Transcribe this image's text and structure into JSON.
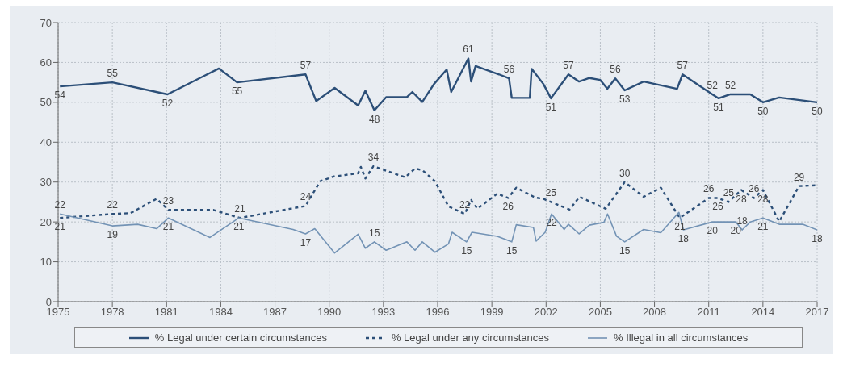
{
  "chart_data": {
    "type": "line",
    "xlim": [
      1975,
      2017
    ],
    "xticks": [
      1975,
      1978,
      1981,
      1984,
      1987,
      1990,
      1993,
      1996,
      1999,
      2002,
      2005,
      2008,
      2011,
      2014,
      2017
    ],
    "ylim": [
      0,
      70
    ],
    "yticks": [
      0,
      10,
      20,
      30,
      40,
      50,
      60,
      70
    ],
    "grid": true,
    "legend": "bottom",
    "marker": "none",
    "series": [
      {
        "name": "% Legal under certain circumstances",
        "color": "#2c4f78",
        "line_style": "solid",
        "x": [
          1975.1,
          1978,
          1981.05,
          1983.9,
          1984.9,
          1988.69,
          1989.28,
          1990.3,
          1991.6,
          1992,
          1992.5,
          1993.15,
          1994.3,
          1994.6,
          1995.15,
          1995.8,
          1996.5,
          1996.75,
          1997.7,
          1997.85,
          1998.1,
          1999.4,
          1999.95,
          2000.1,
          2001.1,
          2001.2,
          2001.85,
          2002.27,
          2003.24,
          2003.83,
          2004.4,
          2005,
          2005.39,
          2005.83,
          2006.35,
          2007.4,
          2009.25,
          2009.55,
          2011.2,
          2011.55,
          2012.2,
          2013.3,
          2014,
          2014.9,
          2017
        ],
        "values": [
          54,
          55,
          52,
          58.5,
          55,
          57,
          50.3,
          53.6,
          49.2,
          52.9,
          48,
          51.3,
          51.3,
          52.6,
          50.1,
          54.6,
          58.2,
          52.6,
          61,
          55.2,
          59.1,
          57,
          56,
          51.1,
          51.1,
          58.4,
          54.6,
          51,
          57,
          55.2,
          56.1,
          55.6,
          53.4,
          56,
          53,
          55.2,
          53.4,
          57,
          52,
          51,
          52,
          52,
          50,
          51.2,
          50
        ],
        "value_labels": [
          "54",
          "55",
          "52",
          null,
          "55",
          "57",
          null,
          null,
          null,
          null,
          "48",
          null,
          null,
          null,
          null,
          null,
          null,
          null,
          "61",
          null,
          null,
          null,
          "56",
          null,
          null,
          null,
          null,
          "51",
          "57",
          null,
          null,
          null,
          null,
          "56",
          "53",
          null,
          null,
          "57",
          "52",
          "51",
          "52",
          null,
          "50",
          null,
          "50"
        ]
      },
      {
        "name": "% Legal under any circumstances",
        "color": "#2c4f78",
        "line_style": "dashed",
        "x": [
          1975.1,
          1978,
          1979,
          1980.45,
          1981.1,
          1983.6,
          1985.05,
          1988.69,
          1989.5,
          1990.25,
          1991.6,
          1991.75,
          1992,
          1992.45,
          1993.05,
          1994.2,
          1994.75,
          1995.15,
          1995.85,
          1996.6,
          1997.5,
          1997.85,
          1998.2,
          1999.3,
          1999.9,
          2000.35,
          2001.4,
          2001.85,
          2002.27,
          2003.3,
          2003.85,
          2005.3,
          2006.35,
          2007.4,
          2008.35,
          2009.4,
          2011,
          2011.5,
          2012.1,
          2012.8,
          2013.5,
          2014,
          2014.9,
          2016,
          2017
        ],
        "values": [
          21,
          22,
          22.2,
          25.8,
          23,
          23,
          21,
          24,
          30.2,
          31.4,
          32.2,
          33.8,
          30.9,
          34,
          33,
          31.2,
          33.4,
          33,
          30.2,
          23.9,
          22,
          25.5,
          23.3,
          27.1,
          26,
          28.6,
          26.1,
          25.8,
          25,
          23.1,
          26.3,
          23.3,
          30,
          26.3,
          28.6,
          21,
          26,
          26,
          25,
          28,
          26,
          28,
          20.1,
          29,
          29.2
        ],
        "value_labels": [
          "21",
          "22",
          null,
          null,
          "23",
          null,
          "21",
          "24",
          null,
          null,
          null,
          null,
          null,
          "34",
          null,
          null,
          null,
          null,
          null,
          null,
          "22",
          null,
          null,
          null,
          "26",
          null,
          null,
          null,
          "25",
          null,
          null,
          null,
          "30",
          null,
          null,
          "21",
          "26",
          "26",
          "25",
          "28",
          "26",
          "28",
          null,
          "29",
          null
        ]
      },
      {
        "name": "% Illegal in all circumstances",
        "color": "#7393b5",
        "line_style": "solid",
        "x": [
          1975.1,
          1978,
          1979.4,
          1980.45,
          1981.1,
          1983.4,
          1985,
          1988,
          1988.69,
          1989.2,
          1990.3,
          1991.6,
          1992,
          1992.5,
          1993.15,
          1994.3,
          1994.75,
          1995.15,
          1995.85,
          1996.6,
          1996.8,
          1997.6,
          1997.9,
          1999.3,
          2000.1,
          2000.35,
          2001.3,
          2001.45,
          2001.95,
          2002.3,
          2003,
          2003.24,
          2003.83,
          2004.4,
          2005.2,
          2005.4,
          2005.9,
          2006.35,
          2007.4,
          2008.35,
          2009.35,
          2009.6,
          2011.2,
          2012.5,
          2012.85,
          2013.3,
          2014,
          2014.9,
          2016.2,
          2017
        ],
        "values": [
          22,
          19,
          19.4,
          18.3,
          21,
          16.1,
          21,
          18.1,
          17,
          18.3,
          12.2,
          16.9,
          13.4,
          15,
          12.9,
          15,
          12.9,
          15,
          12.4,
          14.5,
          17.4,
          15,
          17.4,
          16.4,
          15,
          19.3,
          18.6,
          15.2,
          17.4,
          22,
          18.1,
          19.4,
          17,
          19.2,
          19.9,
          22,
          16.4,
          15,
          18.1,
          17.3,
          22.4,
          18,
          20,
          20,
          18,
          20,
          21,
          19.4,
          19.4,
          18
        ],
        "value_labels": [
          "22",
          "19",
          null,
          null,
          "21",
          null,
          "21",
          null,
          "17",
          null,
          null,
          null,
          null,
          "15",
          null,
          null,
          null,
          null,
          null,
          null,
          null,
          "15",
          null,
          null,
          "15",
          null,
          null,
          null,
          null,
          "22",
          null,
          null,
          null,
          null,
          null,
          null,
          null,
          "15",
          null,
          null,
          null,
          "18",
          "20",
          "20",
          "18",
          null,
          "21",
          null,
          null,
          "18"
        ]
      }
    ]
  }
}
